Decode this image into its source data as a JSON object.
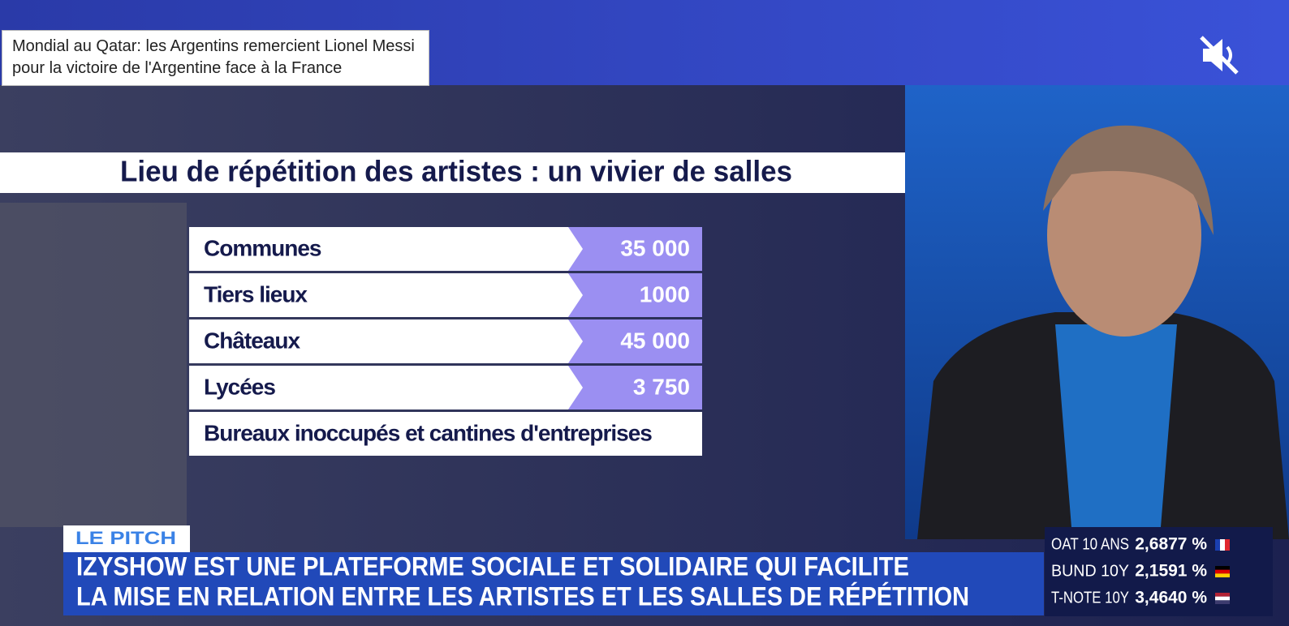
{
  "tooltip": {
    "text": "Mondial au Qatar: les Argentins remercient Lionel Messi pour la victoire de l'Argentine face à la France"
  },
  "graphic": {
    "title": "Lieu de répétition des artistes : un vivier de salles",
    "rows": [
      {
        "label": "Communes",
        "value": "35 000"
      },
      {
        "label": "Tiers lieux",
        "value": "1000"
      },
      {
        "label": "Châteaux",
        "value": "45 000"
      },
      {
        "label": "Lycées",
        "value": "3 750"
      },
      {
        "label": "Bureaux inoccupés et cantines d'entreprises"
      }
    ]
  },
  "ticker": {
    "tag": "LE PITCH",
    "lines": [
      "IZYSHOW EST UNE PLATEFORME SOCIALE ET SOLIDAIRE QUI FACILITE",
      "LA MISE EN RELATION ENTRE LES ARTISTES ET LES SALLES DE RÉPÉTITION"
    ]
  },
  "markets": [
    {
      "name": "OAT 10 ANS",
      "value": "2,6877 %"
    },
    {
      "name": "BUND 10Y",
      "value": "2,1591 %"
    },
    {
      "name": "T-NOTE 10Y",
      "value": "3,4640 %"
    }
  ]
}
